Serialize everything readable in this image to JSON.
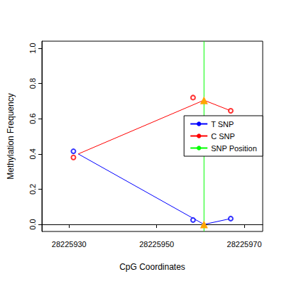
{
  "chart_data": {
    "type": "line",
    "x_label": "CpG Coordinates",
    "y_label": "Methylation Frequency",
    "xlim": [
      28225923.8,
      28225974.2
    ],
    "xticks": [
      28225930,
      28225950,
      28225970
    ],
    "ylim": [
      -0.04,
      1.04
    ],
    "yticks": [
      {
        "value": 0,
        "label": "0.0"
      },
      0.2,
      0.4,
      0.6,
      0.8,
      {
        "value": 1,
        "label": "1.0"
      }
    ],
    "legend": "right",
    "series": [
      {
        "name": "T SNP",
        "color": "#0000ff",
        "x": [
          28225932.1,
          28225960.8,
          28225966.9
        ],
        "values": [
          0.4,
          0,
          0.033
        ],
        "points": {
          "marker": "circle",
          "x": [
            28225931,
            28225958.3,
            28225966.9
          ],
          "values": [
            0.415,
            0.025,
            0.033
          ]
        }
      },
      {
        "name": "C SNP",
        "color": "#ff0000",
        "x": [
          28225932.1,
          28225960.8,
          28225966.9
        ],
        "values": [
          0.4,
          0.705,
          0.645
        ],
        "points": {
          "marker": "circle",
          "x": [
            28225931,
            28225958.3,
            28225966.9
          ],
          "values": [
            0.38,
            0.72,
            0.645
          ]
        }
      }
    ],
    "snp": {
      "name": "SNP Position",
      "color": "#00ff00",
      "x": 28225960.8,
      "marker": "triangle"
    }
  }
}
